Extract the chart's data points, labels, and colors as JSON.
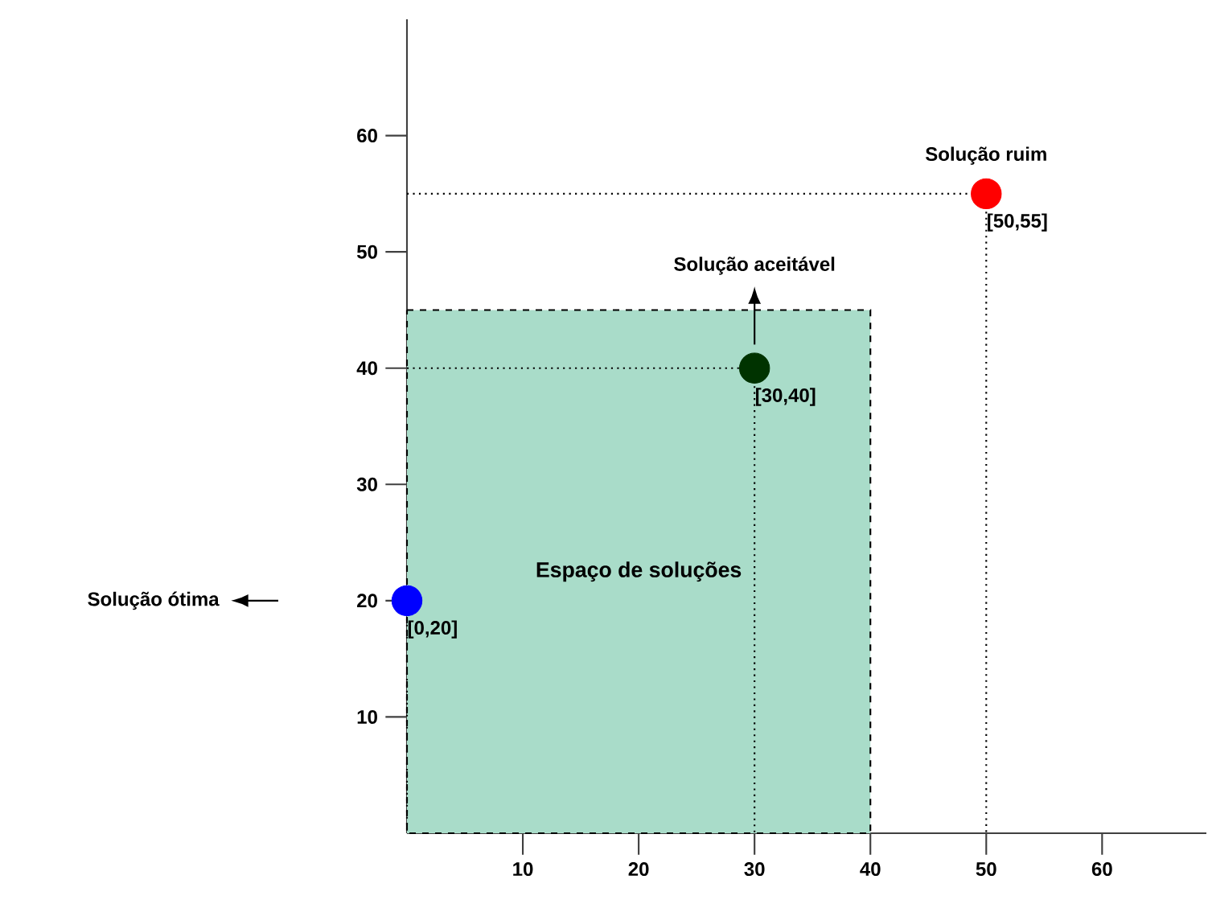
{
  "chart_data": {
    "type": "scatter",
    "xlim": [
      0,
      69
    ],
    "ylim": [
      0,
      70
    ],
    "xticks": [
      10,
      20,
      30,
      40,
      50,
      60
    ],
    "yticks": [
      10,
      20,
      30,
      40,
      50,
      60
    ],
    "marker": "circle",
    "series": [
      {
        "type": "area",
        "name": "Espaço de soluções",
        "color": "#a9dcc9",
        "line_style": "dashed",
        "marker": "none",
        "x": [
          0,
          40
        ],
        "values": [
          45,
          45
        ]
      },
      {
        "color": "#0000ff",
        "x": [
          0
        ],
        "values": [
          20
        ]
      },
      {
        "color": "#003300",
        "x": [
          30
        ],
        "values": [
          40
        ]
      },
      {
        "color": "#ff0000",
        "x": [
          50
        ],
        "values": [
          55
        ]
      }
    ],
    "annotations": [
      "Solução ótima",
      {
        "text": "[0,20]",
        "x": 0,
        "y": 20
      },
      "Solução aceitável",
      {
        "text": "[30,40]",
        "x": 30,
        "y": 40
      },
      {
        "text": "Solução ruim",
        "x": 50,
        "y": 55
      },
      {
        "text": "[50,55]",
        "x": 50,
        "y": 55
      }
    ]
  }
}
